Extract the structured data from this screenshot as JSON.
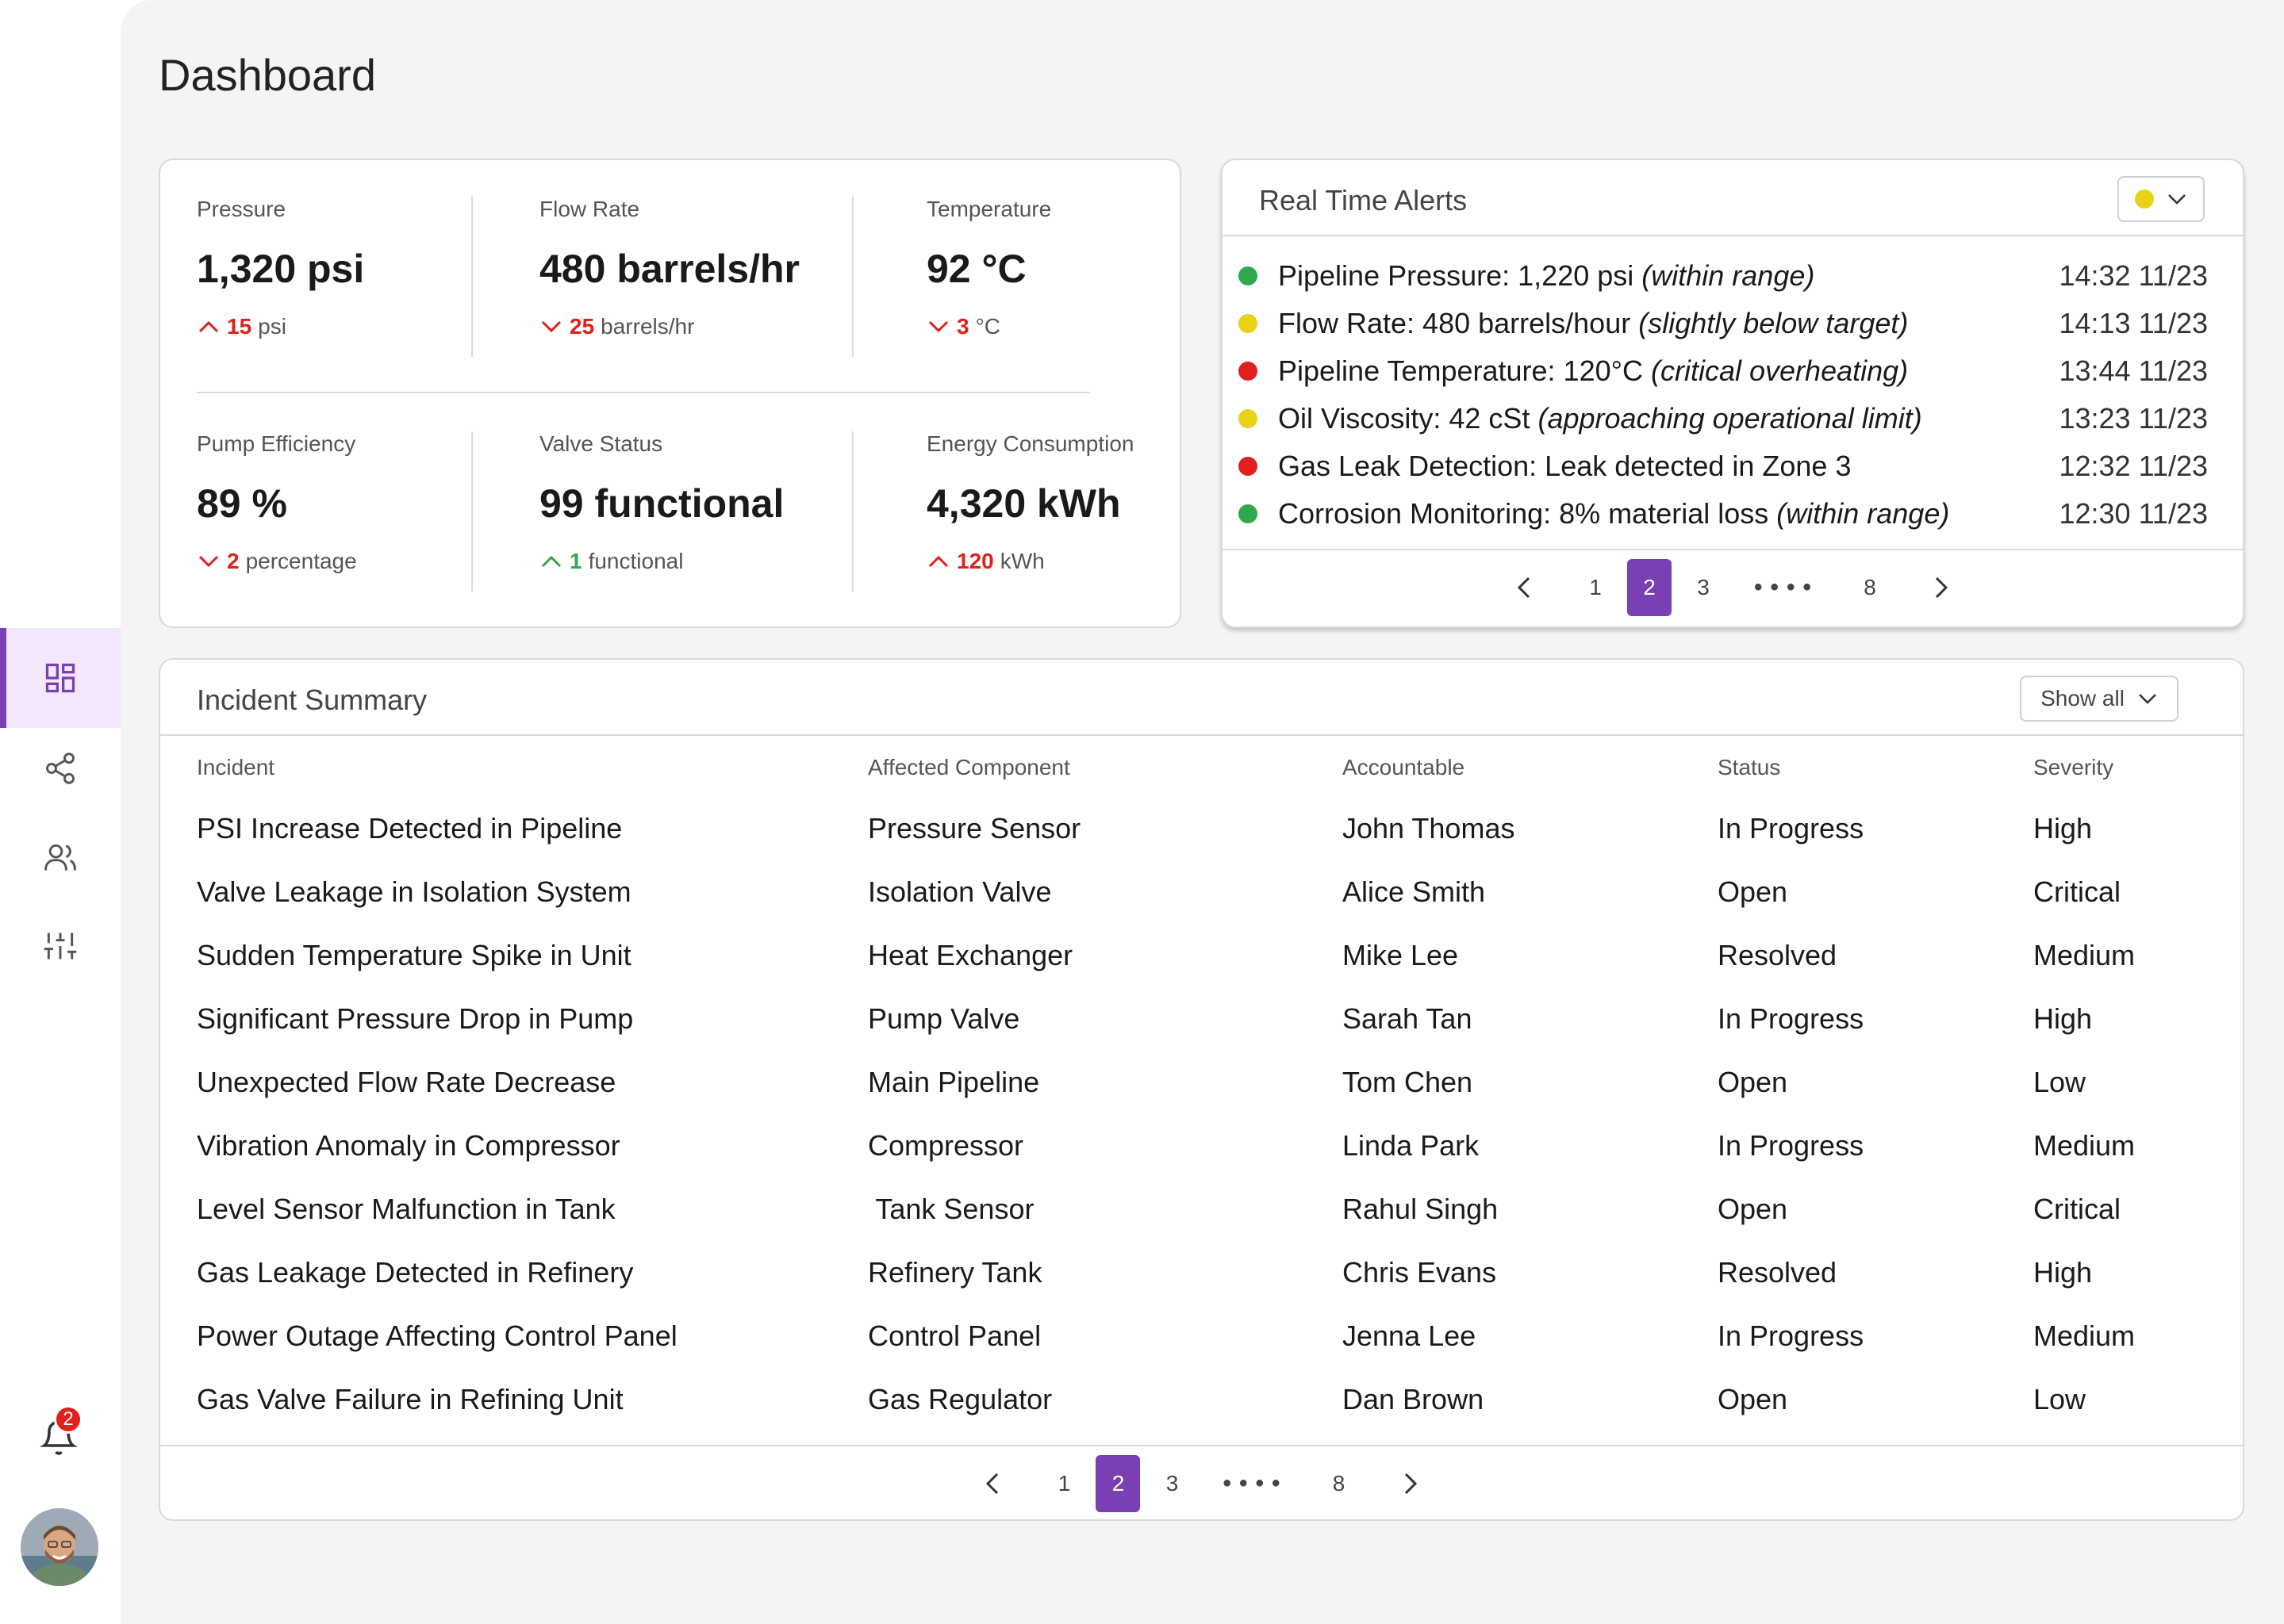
{
  "page_title": "Dashboard",
  "nav": [
    {
      "name": "dashboard-icon",
      "active": true
    },
    {
      "name": "share-icon",
      "active": false
    },
    {
      "name": "users-icon",
      "active": false
    },
    {
      "name": "sliders-icon",
      "active": false
    }
  ],
  "notifications": {
    "count": "2"
  },
  "kpis": [
    {
      "label": "Pressure",
      "value": "1,320 psi",
      "delta": "15",
      "unit": "psi",
      "direction": "up",
      "color": "#e0201c"
    },
    {
      "label": "Flow Rate",
      "value": "480 barrels/hr",
      "delta": "25",
      "unit": "barrels/hr",
      "direction": "down",
      "color": "#e0201c"
    },
    {
      "label": "Temperature",
      "value": "92 °C",
      "delta": "3",
      "unit": "°C",
      "direction": "down",
      "color": "#e0201c"
    },
    {
      "label": "Pump Efficiency",
      "value": "89 %",
      "delta": "2",
      "unit": "percentage",
      "direction": "down",
      "color": "#e0201c"
    },
    {
      "label": "Valve Status",
      "value": "99 functional",
      "delta": "1",
      "unit": "functional",
      "direction": "up",
      "color": "#2fa84f"
    },
    {
      "label": "Energy Consumption",
      "value": "4,320 kWh",
      "delta": "120",
      "unit": "kWh",
      "direction": "up",
      "color": "#e0201c"
    }
  ],
  "alerts": {
    "title": "Real Time Alerts",
    "filter_color": "#e6d317",
    "items": [
      {
        "text": "Pipeline Pressure: 1,220 psi ",
        "note": "(within range)",
        "time": "14:32 11/23",
        "color": "#2fa84f"
      },
      {
        "text": "Flow Rate: 480 barrels/hour ",
        "note": "(slightly below target)",
        "time": "14:13 11/23",
        "color": "#e6d317"
      },
      {
        "text": "Pipeline Temperature: 120°C ",
        "note": "(critical overheating)",
        "time": "13:44 11/23",
        "color": "#e0201c"
      },
      {
        "text": "Oil Viscosity: 42 cSt ",
        "note": "(approaching operational limit)",
        "time": "13:23 11/23",
        "color": "#e6d317"
      },
      {
        "text": "Gas Leak Detection: Leak detected in Zone 3",
        "note": "",
        "time": "12:32 11/23",
        "color": "#e0201c"
      },
      {
        "text": "Corrosion Monitoring: 8% material loss ",
        "note": "(within range)",
        "time": "12:30 11/23",
        "color": "#2fa84f"
      }
    ],
    "pagination": {
      "pages": [
        "1",
        "2",
        "3"
      ],
      "ellipsis": "••••",
      "last": "8",
      "current": "2"
    }
  },
  "incidents": {
    "title": "Incident Summary",
    "filter_label": "Show all",
    "columns": [
      "Incident",
      "Affected Component",
      "Accountable",
      "Status",
      "Severity"
    ],
    "rows": [
      [
        "PSI Increase Detected in Pipeline",
        "Pressure Sensor",
        "John Thomas",
        "In Progress",
        "High"
      ],
      [
        "Valve Leakage in Isolation System",
        "Isolation Valve",
        "Alice Smith",
        "Open",
        "Critical"
      ],
      [
        "Sudden Temperature Spike in Unit",
        "Heat Exchanger",
        "Mike Lee",
        "Resolved",
        "Medium"
      ],
      [
        "Significant Pressure Drop in Pump",
        "Pump Valve",
        "Sarah Tan",
        "In Progress",
        "High"
      ],
      [
        "Unexpected Flow Rate Decrease",
        "Main Pipeline",
        "Tom Chen",
        "Open",
        "Low"
      ],
      [
        "Vibration Anomaly in Compressor",
        "Compressor",
        "Linda Park",
        "In Progress",
        "Medium"
      ],
      [
        "Level Sensor Malfunction in Tank",
        " Tank Sensor",
        "Rahul Singh",
        "Open",
        "Critical"
      ],
      [
        "Gas Leakage Detected in Refinery",
        "Refinery Tank",
        "Chris Evans",
        "Resolved",
        "High"
      ],
      [
        "Power Outage Affecting Control Panel",
        "Control Panel",
        "Jenna Lee",
        "In Progress",
        "Medium"
      ],
      [
        "Gas Valve Failure in Refining Unit",
        "Gas Regulator",
        "Dan Brown",
        "Open",
        "Low"
      ]
    ],
    "pagination": {
      "pages": [
        "1",
        "2",
        "3"
      ],
      "ellipsis": "••••",
      "last": "8",
      "current": "2"
    }
  }
}
